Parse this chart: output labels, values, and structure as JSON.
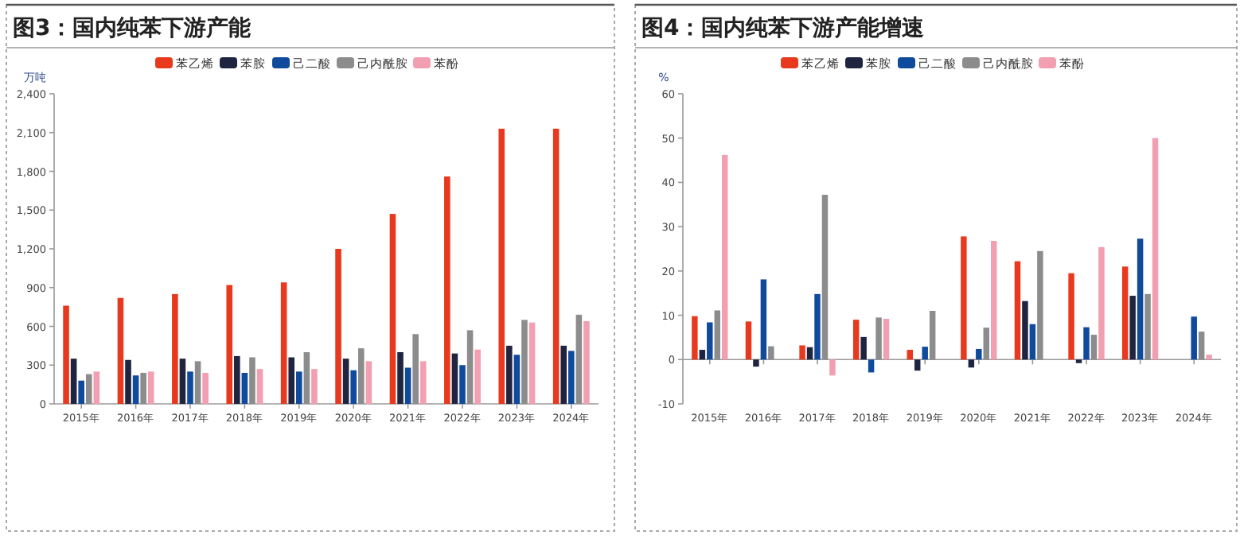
{
  "chart_data": [
    {
      "type": "bar",
      "title": "图3：国内纯苯下游产能",
      "ylabel": "万吨",
      "legend": "top",
      "categories": [
        "2015年",
        "2016年",
        "2017年",
        "2018年",
        "2019年",
        "2020年",
        "2021年",
        "2022年",
        "2023年",
        "2024年"
      ],
      "ylim": [
        0,
        2400
      ],
      "yticks": [
        0,
        300,
        600,
        900,
        {
          "value": 1200,
          "label": "1,200"
        },
        {
          "value": 1500,
          "label": "1,500"
        },
        {
          "value": 1800,
          "label": "1,800"
        },
        {
          "value": 2100,
          "label": "2,100"
        },
        {
          "value": 2400,
          "label": "2,400"
        }
      ],
      "series": [
        {
          "name": "苯乙烯",
          "color": "#e8381e",
          "values": [
            760,
            820,
            850,
            920,
            940,
            1200,
            1470,
            1760,
            2130,
            2130
          ]
        },
        {
          "name": "苯胺",
          "color": "#1f2440",
          "values": [
            350,
            340,
            350,
            370,
            360,
            350,
            400,
            390,
            450,
            450
          ]
        },
        {
          "name": "己二酸",
          "color": "#0f4a9c",
          "values": [
            180,
            220,
            250,
            240,
            250,
            260,
            280,
            300,
            380,
            410
          ]
        },
        {
          "name": "己内酰胺",
          "color": "#8c8c8c",
          "values": [
            230,
            240,
            330,
            360,
            400,
            430,
            540,
            570,
            650,
            690
          ]
        },
        {
          "name": "苯酚",
          "color": "#f29fb2",
          "values": [
            250,
            250,
            240,
            270,
            270,
            330,
            330,
            420,
            630,
            640
          ]
        }
      ]
    },
    {
      "type": "bar",
      "title": "图4：国内纯苯下游产能增速",
      "ylabel": "%",
      "legend": "top",
      "categories": [
        "2015年",
        "2016年",
        "2017年",
        "2018年",
        "2019年",
        "2020年",
        "2021年",
        "2022年",
        "2023年",
        "2024年"
      ],
      "ylim": [
        -10,
        60
      ],
      "yticks": [
        -10,
        0,
        10,
        20,
        30,
        40,
        50,
        60
      ],
      "series": [
        {
          "name": "苯乙烯",
          "color": "#e8381e",
          "values": [
            9.8,
            8.6,
            3.2,
            9.0,
            2.2,
            27.8,
            22.2,
            19.5,
            21.0,
            0
          ]
        },
        {
          "name": "苯胺",
          "color": "#1f2440",
          "values": [
            2.2,
            -1.6,
            2.8,
            5.1,
            -2.5,
            -1.8,
            13.2,
            -0.8,
            14.4,
            0
          ]
        },
        {
          "name": "己二酸",
          "color": "#0f4a9c",
          "values": [
            8.4,
            18.1,
            14.8,
            -2.9,
            2.9,
            2.4,
            8.0,
            7.3,
            27.3,
            9.7
          ]
        },
        {
          "name": "己内酰胺",
          "color": "#8c8c8c",
          "values": [
            11.1,
            3.0,
            37.2,
            9.5,
            11.0,
            7.2,
            24.5,
            5.6,
            14.8,
            6.3
          ]
        },
        {
          "name": "苯酚",
          "color": "#f29fb2",
          "values": [
            46.2,
            0,
            -3.6,
            9.2,
            0,
            26.8,
            0,
            25.4,
            50.0,
            1.1
          ]
        }
      ]
    }
  ]
}
